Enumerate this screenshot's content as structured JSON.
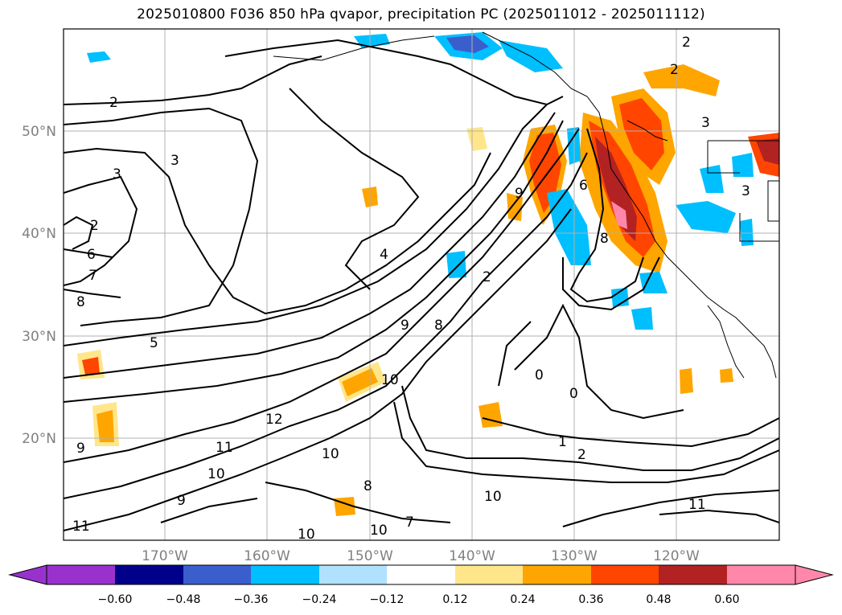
{
  "title": "2025010800 F036 850 hPa qvapor, precipitation PC (2025011012 - 2025011112)",
  "lat_ticks": [
    "50°N",
    "40°N",
    "30°N",
    "20°N"
  ],
  "lon_ticks": [
    "170°W",
    "160°W",
    "150°W",
    "140°W",
    "130°W",
    "120°W"
  ],
  "colorbar": {
    "tick_labels": [
      "−0.60",
      "−0.48",
      "−0.36",
      "−0.24",
      "−0.12",
      "0.12",
      "0.24",
      "0.36",
      "0.48",
      "0.60"
    ],
    "colors": [
      "#9932cc",
      "#00008b",
      "#3a5fcd",
      "#00bfff",
      "#b0e2ff",
      "#ffffff",
      "#ffe68a",
      "#ffa500",
      "#ff4500",
      "#b22222",
      "#ff88aa"
    ]
  },
  "contour_labels": [
    "2",
    "3",
    "3",
    "2",
    "6",
    "7",
    "8",
    "5",
    "4",
    "9",
    "8",
    "10",
    "11",
    "10",
    "9",
    "10",
    "8",
    "7",
    "10",
    "10",
    "11",
    "12",
    "9",
    "2",
    "0",
    "0",
    "1",
    "2",
    "10",
    "11",
    "9",
    "8",
    "6",
    "3",
    "2",
    "3",
    "2"
  ],
  "colors": {
    "gridline": "#b0b0b0",
    "coastline": "#000000",
    "contour": "#000000"
  }
}
